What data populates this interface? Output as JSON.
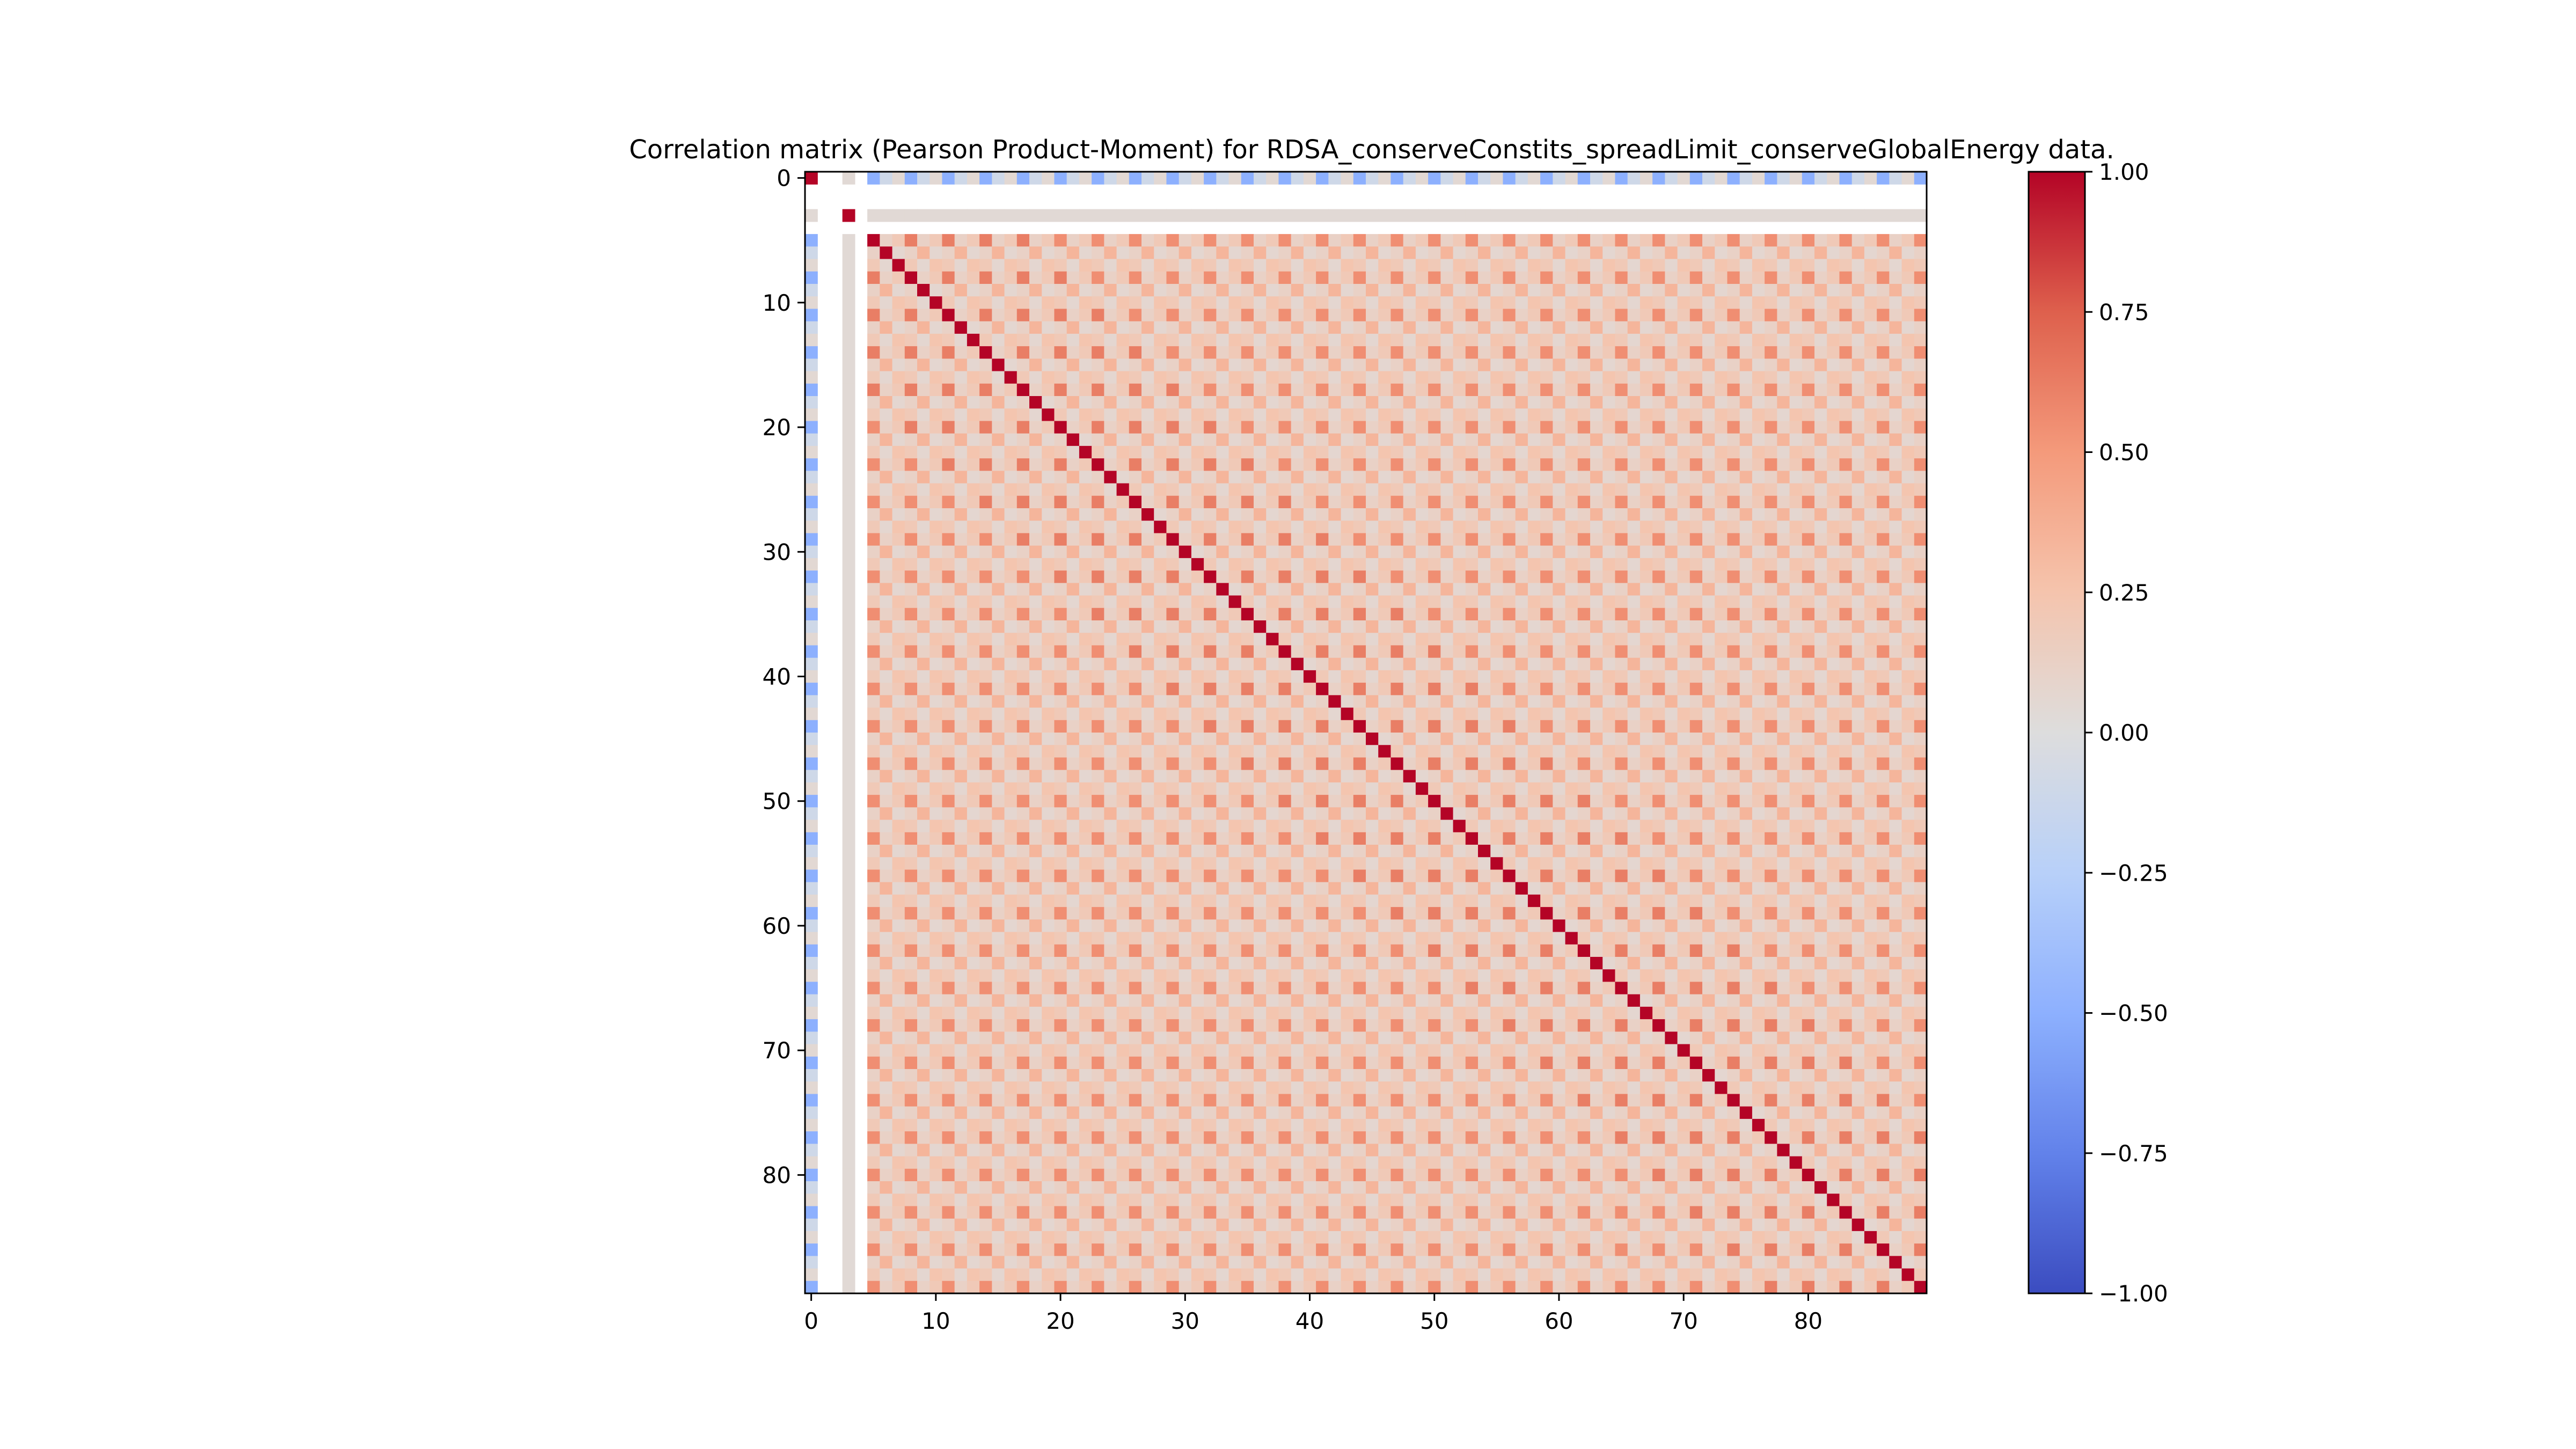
{
  "chart_data": {
    "type": "heatmap",
    "title": "Correlation matrix (Pearson Product-Moment) for RDSA_conserveConstits_spreadLimit_conserveGlobalEnergy data.",
    "xlabel": "",
    "ylabel": "",
    "size": 90,
    "xlim": [
      0,
      89
    ],
    "ylim": [
      0,
      89
    ],
    "x_ticks": [
      0,
      10,
      20,
      30,
      40,
      50,
      60,
      70,
      80
    ],
    "y_ticks": [
      0,
      10,
      20,
      30,
      40,
      50,
      60,
      70,
      80
    ],
    "vmin": -1.0,
    "vmax": 1.0,
    "colormap": "coolwarm",
    "colorbar_ticks": [
      "1.00",
      "0.75",
      "0.50",
      "0.25",
      "0.00",
      "−0.25",
      "−0.50",
      "−0.75",
      "−1.00"
    ],
    "colorbar_tick_values": [
      1.0,
      0.75,
      0.5,
      0.25,
      0.0,
      -0.25,
      -0.5,
      -0.75,
      -1.0
    ],
    "undefined_variables": [
      1,
      2,
      4
    ],
    "row_3_cross_correlation": 0.04,
    "pattern": {
      "description_period": 3,
      "diag": 1.0,
      "same_phase_0_near": 0.62,
      "same_phase_0_far": 0.55,
      "same_phase_1": 0.34,
      "same_phase_2": 0.24,
      "cross_phase_01": 0.12,
      "cross_phase_02": 0.2,
      "cross_phase_12": 0.07,
      "var0_with_phase_0": -0.5,
      "var0_with_phase_1": -0.1,
      "var0_with_phase_2": 0.05
    },
    "grid": false
  }
}
